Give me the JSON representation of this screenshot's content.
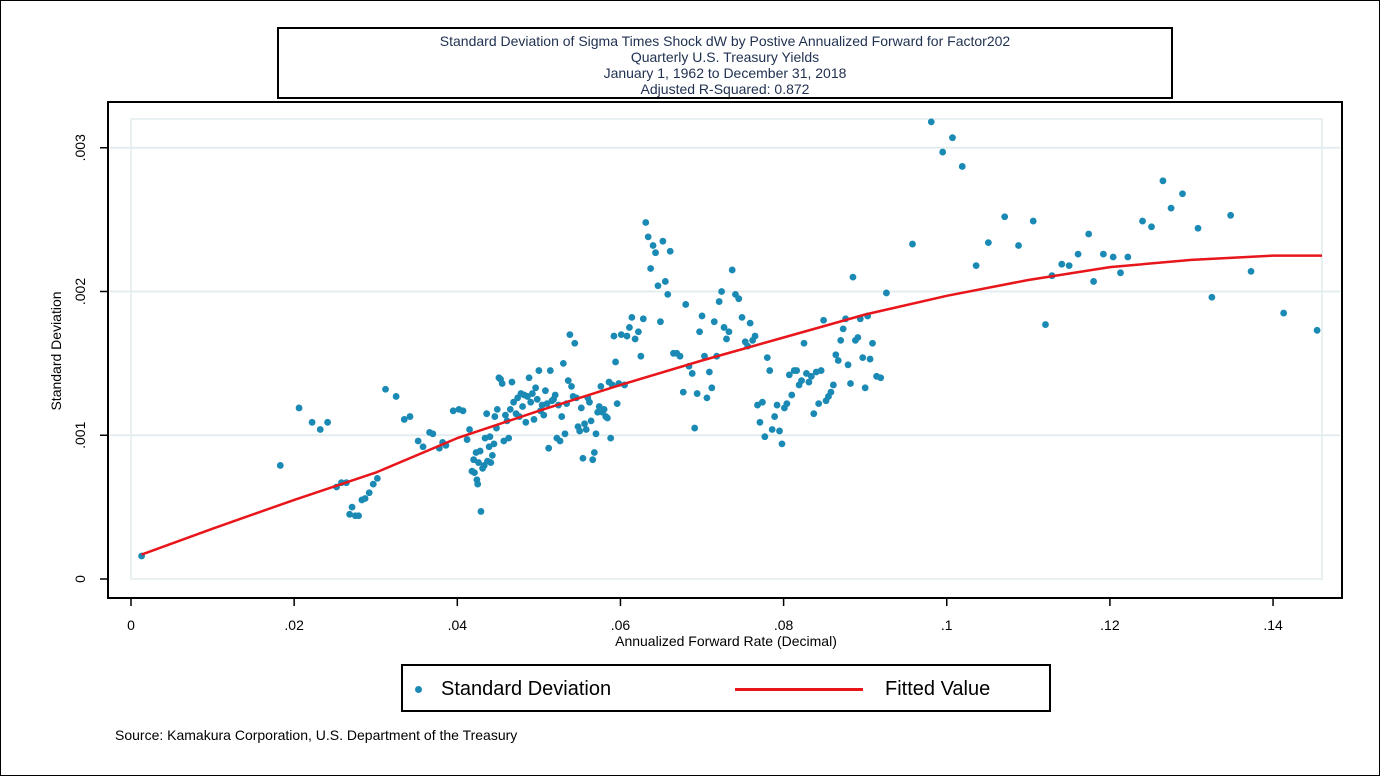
{
  "chart_data": {
    "type": "scatter",
    "title": [
      "Standard Deviation of Sigma Times Shock dW by Postive Annualized Forward for Factor202",
      "Quarterly U.S. Treasury Yields",
      "January 1, 1962 to December 31, 2018",
      "Adjusted R-Squared: 0.872"
    ],
    "xlabel": "Annualized Forward Rate (Decimal)",
    "ylabel": "Standard Deviation",
    "xlim": [
      0,
      0.146
    ],
    "ylim": [
      0,
      0.0032
    ],
    "xticks": [
      {
        "value": 0,
        "label": "0"
      },
      {
        "value": 0.02,
        "label": ".02"
      },
      {
        "value": 0.04,
        "label": ".04"
      },
      {
        "value": 0.06,
        "label": ".06"
      },
      {
        "value": 0.08,
        "label": ".08"
      },
      {
        "value": 0.1,
        "label": ".1"
      },
      {
        "value": 0.12,
        "label": ".12"
      },
      {
        "value": 0.14,
        "label": ".14"
      }
    ],
    "yticks": [
      {
        "value": 0,
        "label": "0"
      },
      {
        "value": 0.001,
        "label": ".001"
      },
      {
        "value": 0.002,
        "label": ".002"
      },
      {
        "value": 0.003,
        "label": ".003"
      }
    ],
    "grid": true,
    "legend_position": "bottom",
    "colors": {
      "scatter": "#1a8ab5",
      "fit": "#e8161b",
      "grid": "#e3ecef",
      "plot_border": "#e8f0f2"
    },
    "series": [
      {
        "name": "Standard Deviation",
        "kind": "scatter",
        "points": [
          [
            0.0013,
            0.00016
          ],
          [
            0.0183,
            0.00079
          ],
          [
            0.0206,
            0.00119
          ],
          [
            0.0222,
            0.00109
          ],
          [
            0.0232,
            0.00104
          ],
          [
            0.0241,
            0.00109
          ],
          [
            0.0252,
            0.00064
          ],
          [
            0.0258,
            0.00067
          ],
          [
            0.0264,
            0.00067
          ],
          [
            0.0268,
            0.00045
          ],
          [
            0.0271,
            0.0005
          ],
          [
            0.0275,
            0.00044
          ],
          [
            0.0279,
            0.00044
          ],
          [
            0.0283,
            0.00055
          ],
          [
            0.0287,
            0.00056
          ],
          [
            0.0292,
            0.0006
          ],
          [
            0.0297,
            0.00066
          ],
          [
            0.0302,
            0.0007
          ],
          [
            0.0312,
            0.00132
          ],
          [
            0.0325,
            0.00127
          ],
          [
            0.0335,
            0.00111
          ],
          [
            0.0342,
            0.00113
          ],
          [
            0.0352,
            0.00096
          ],
          [
            0.0358,
            0.00092
          ],
          [
            0.0366,
            0.00102
          ],
          [
            0.037,
            0.00101
          ],
          [
            0.0378,
            0.00091
          ],
          [
            0.0382,
            0.00095
          ],
          [
            0.0386,
            0.00093
          ],
          [
            0.0395,
            0.00117
          ],
          [
            0.0402,
            0.00118
          ],
          [
            0.0407,
            0.00117
          ],
          [
            0.0412,
            0.00097
          ],
          [
            0.0415,
            0.00104
          ],
          [
            0.0418,
            0.00075
          ],
          [
            0.042,
            0.00083
          ],
          [
            0.0421,
            0.00074
          ],
          [
            0.0423,
            0.00088
          ],
          [
            0.0424,
            0.00069
          ],
          [
            0.0425,
            0.00066
          ],
          [
            0.0426,
            0.00081
          ],
          [
            0.0428,
            0.00089
          ],
          [
            0.0429,
            0.00047
          ],
          [
            0.0431,
            0.00077
          ],
          [
            0.0433,
            0.00079
          ],
          [
            0.0434,
            0.00098
          ],
          [
            0.0436,
            0.00115
          ],
          [
            0.0437,
            0.00082
          ],
          [
            0.0439,
            0.00092
          ],
          [
            0.044,
            0.00099
          ],
          [
            0.0441,
            0.00081
          ],
          [
            0.0443,
            0.00086
          ],
          [
            0.0445,
            0.00094
          ],
          [
            0.0446,
            0.00113
          ],
          [
            0.0448,
            0.00105
          ],
          [
            0.0449,
            0.00118
          ],
          [
            0.0451,
            0.0014
          ],
          [
            0.0453,
            0.00139
          ],
          [
            0.0455,
            0.00136
          ],
          [
            0.0457,
            0.00096
          ],
          [
            0.0459,
            0.00114
          ],
          [
            0.0461,
            0.0011
          ],
          [
            0.0463,
            0.00098
          ],
          [
            0.0465,
            0.00118
          ],
          [
            0.0467,
            0.00137
          ],
          [
            0.0469,
            0.00123
          ],
          [
            0.0472,
            0.00115
          ],
          [
            0.0474,
            0.00126
          ],
          [
            0.0476,
            0.00113
          ],
          [
            0.0478,
            0.00129
          ],
          [
            0.048,
            0.0012
          ],
          [
            0.0482,
            0.00128
          ],
          [
            0.0484,
            0.00109
          ],
          [
            0.0486,
            0.00127
          ],
          [
            0.0488,
            0.0014
          ],
          [
            0.049,
            0.00123
          ],
          [
            0.0492,
            0.00129
          ],
          [
            0.0494,
            0.00111
          ],
          [
            0.0496,
            0.00133
          ],
          [
            0.0498,
            0.00125
          ],
          [
            0.05,
            0.00145
          ],
          [
            0.0502,
            0.00117
          ],
          [
            0.0504,
            0.00121
          ],
          [
            0.0506,
            0.00114
          ],
          [
            0.0508,
            0.00131
          ],
          [
            0.051,
            0.00122
          ],
          [
            0.0512,
            0.00091
          ],
          [
            0.0514,
            0.00145
          ],
          [
            0.0516,
            0.00124
          ],
          [
            0.0518,
            0.00125
          ],
          [
            0.052,
            0.00128
          ],
          [
            0.0522,
            0.00098
          ],
          [
            0.0524,
            0.00121
          ],
          [
            0.0526,
            0.00096
          ],
          [
            0.0528,
            0.00113
          ],
          [
            0.053,
            0.0015
          ],
          [
            0.0532,
            0.00101
          ],
          [
            0.0534,
            0.00122
          ],
          [
            0.0536,
            0.00138
          ],
          [
            0.0538,
            0.0017
          ],
          [
            0.054,
            0.00134
          ],
          [
            0.0542,
            0.00127
          ],
          [
            0.0544,
            0.00164
          ],
          [
            0.0546,
            0.00126
          ],
          [
            0.0548,
            0.00106
          ],
          [
            0.055,
            0.00103
          ],
          [
            0.0552,
            0.00119
          ],
          [
            0.0554,
            0.00084
          ],
          [
            0.0556,
            0.00108
          ],
          [
            0.0558,
            0.00104
          ],
          [
            0.056,
            0.00126
          ],
          [
            0.0562,
            0.00123
          ],
          [
            0.0564,
            0.0011
          ],
          [
            0.0566,
            0.00083
          ],
          [
            0.0568,
            0.00088
          ],
          [
            0.057,
            0.00101
          ],
          [
            0.0572,
            0.00116
          ],
          [
            0.0574,
            0.0012
          ],
          [
            0.0576,
            0.00134
          ],
          [
            0.0578,
            0.00116
          ],
          [
            0.058,
            0.00118
          ],
          [
            0.0582,
            0.00113
          ],
          [
            0.0584,
            0.00112
          ],
          [
            0.0586,
            0.00137
          ],
          [
            0.0588,
            0.00098
          ],
          [
            0.059,
            0.00135
          ],
          [
            0.0592,
            0.00169
          ],
          [
            0.0594,
            0.00151
          ],
          [
            0.0596,
            0.00122
          ],
          [
            0.0598,
            0.00136
          ],
          [
            0.0601,
            0.0017
          ],
          [
            0.0605,
            0.00135
          ],
          [
            0.0608,
            0.00169
          ],
          [
            0.0611,
            0.00175
          ],
          [
            0.0614,
            0.00182
          ],
          [
            0.0618,
            0.00167
          ],
          [
            0.0622,
            0.00172
          ],
          [
            0.0625,
            0.00155
          ],
          [
            0.0628,
            0.00181
          ],
          [
            0.0631,
            0.00248
          ],
          [
            0.0634,
            0.00238
          ],
          [
            0.0637,
            0.00216
          ],
          [
            0.064,
            0.00232
          ],
          [
            0.0643,
            0.00227
          ],
          [
            0.0646,
            0.00204
          ],
          [
            0.0649,
            0.00179
          ],
          [
            0.0652,
            0.00235
          ],
          [
            0.0655,
            0.00207
          ],
          [
            0.0658,
            0.00198
          ],
          [
            0.0661,
            0.00228
          ],
          [
            0.0665,
            0.00157
          ],
          [
            0.0669,
            0.00157
          ],
          [
            0.0673,
            0.00155
          ],
          [
            0.0677,
            0.0013
          ],
          [
            0.068,
            0.00191
          ],
          [
            0.0684,
            0.00148
          ],
          [
            0.0688,
            0.00143
          ],
          [
            0.0691,
            0.00105
          ],
          [
            0.0694,
            0.00129
          ],
          [
            0.0697,
            0.00172
          ],
          [
            0.07,
            0.00183
          ],
          [
            0.0703,
            0.00155
          ],
          [
            0.0706,
            0.00126
          ],
          [
            0.0709,
            0.00144
          ],
          [
            0.0712,
            0.00133
          ],
          [
            0.0715,
            0.00179
          ],
          [
            0.0718,
            0.00155
          ],
          [
            0.0721,
            0.00193
          ],
          [
            0.0724,
            0.002
          ],
          [
            0.0727,
            0.00175
          ],
          [
            0.073,
            0.00167
          ],
          [
            0.0733,
            0.00172
          ],
          [
            0.0737,
            0.00215
          ],
          [
            0.0741,
            0.00198
          ],
          [
            0.0745,
            0.00195
          ],
          [
            0.0749,
            0.00182
          ],
          [
            0.0753,
            0.00165
          ],
          [
            0.0756,
            0.00162
          ],
          [
            0.0759,
            0.00178
          ],
          [
            0.0762,
            0.00166
          ],
          [
            0.0765,
            0.00169
          ],
          [
            0.0768,
            0.00121
          ],
          [
            0.0771,
            0.00109
          ],
          [
            0.0774,
            0.00123
          ],
          [
            0.0777,
            0.00099
          ],
          [
            0.078,
            0.00154
          ],
          [
            0.0783,
            0.00145
          ],
          [
            0.0786,
            0.00104
          ],
          [
            0.0789,
            0.00113
          ],
          [
            0.0792,
            0.00121
          ],
          [
            0.0795,
            0.00103
          ],
          [
            0.0798,
            0.00094
          ],
          [
            0.0801,
            0.00119
          ],
          [
            0.0804,
            0.00122
          ],
          [
            0.0807,
            0.00142
          ],
          [
            0.081,
            0.00128
          ],
          [
            0.0813,
            0.00145
          ],
          [
            0.0816,
            0.00145
          ],
          [
            0.0819,
            0.00135
          ],
          [
            0.0822,
            0.00138
          ],
          [
            0.0825,
            0.00164
          ],
          [
            0.0828,
            0.00143
          ],
          [
            0.0831,
            0.00137
          ],
          [
            0.0834,
            0.00141
          ],
          [
            0.0837,
            0.00115
          ],
          [
            0.084,
            0.00144
          ],
          [
            0.0843,
            0.00122
          ],
          [
            0.0846,
            0.00145
          ],
          [
            0.0849,
            0.0018
          ],
          [
            0.0852,
            0.00124
          ],
          [
            0.0855,
            0.00127
          ],
          [
            0.0858,
            0.0013
          ],
          [
            0.0861,
            0.00135
          ],
          [
            0.0864,
            0.00156
          ],
          [
            0.0867,
            0.00152
          ],
          [
            0.087,
            0.00166
          ],
          [
            0.0873,
            0.00174
          ],
          [
            0.0876,
            0.00181
          ],
          [
            0.0879,
            0.00149
          ],
          [
            0.0882,
            0.00136
          ],
          [
            0.0885,
            0.0021
          ],
          [
            0.0888,
            0.00166
          ],
          [
            0.0891,
            0.00168
          ],
          [
            0.0894,
            0.00181
          ],
          [
            0.0897,
            0.00154
          ],
          [
            0.09,
            0.00133
          ],
          [
            0.0903,
            0.00183
          ],
          [
            0.0906,
            0.00153
          ],
          [
            0.0909,
            0.00164
          ],
          [
            0.0914,
            0.00141
          ],
          [
            0.0919,
            0.0014
          ],
          [
            0.0926,
            0.00199
          ],
          [
            0.0958,
            0.00233
          ],
          [
            0.0981,
            0.00318
          ],
          [
            0.0995,
            0.00297
          ],
          [
            0.1007,
            0.00307
          ],
          [
            0.1019,
            0.00287
          ],
          [
            0.1036,
            0.00218
          ],
          [
            0.1051,
            0.00234
          ],
          [
            0.1071,
            0.00252
          ],
          [
            0.1088,
            0.00232
          ],
          [
            0.1106,
            0.00249
          ],
          [
            0.1121,
            0.00177
          ],
          [
            0.1129,
            0.00211
          ],
          [
            0.1141,
            0.00219
          ],
          [
            0.115,
            0.00218
          ],
          [
            0.1161,
            0.00226
          ],
          [
            0.1174,
            0.0024
          ],
          [
            0.118,
            0.00207
          ],
          [
            0.1192,
            0.00226
          ],
          [
            0.1204,
            0.00224
          ],
          [
            0.1213,
            0.00213
          ],
          [
            0.1222,
            0.00224
          ],
          [
            0.124,
            0.00249
          ],
          [
            0.1251,
            0.00245
          ],
          [
            0.1265,
            0.00277
          ],
          [
            0.1275,
            0.00258
          ],
          [
            0.1289,
            0.00268
          ],
          [
            0.1308,
            0.00244
          ],
          [
            0.1325,
            0.00196
          ],
          [
            0.1348,
            0.00253
          ],
          [
            0.1373,
            0.00214
          ],
          [
            0.1413,
            0.00185
          ],
          [
            0.1454,
            0.00173
          ]
        ]
      },
      {
        "name": "Fitted Value",
        "kind": "line",
        "points": [
          [
            0.0013,
            0.00017
          ],
          [
            0.01,
            0.00035
          ],
          [
            0.02,
            0.00055
          ],
          [
            0.03,
            0.00074
          ],
          [
            0.04,
            0.00098
          ],
          [
            0.05,
            0.00117
          ],
          [
            0.06,
            0.00135
          ],
          [
            0.07,
            0.00152
          ],
          [
            0.08,
            0.00168
          ],
          [
            0.09,
            0.00184
          ],
          [
            0.1,
            0.00197
          ],
          [
            0.11,
            0.00208
          ],
          [
            0.12,
            0.00217
          ],
          [
            0.13,
            0.00222
          ],
          [
            0.14,
            0.00225
          ],
          [
            0.146,
            0.00225
          ]
        ]
      }
    ]
  },
  "legend": {
    "scatter_label": "Standard Deviation",
    "line_label": "Fitted Value"
  },
  "source_note": "Source: Kamakura Corporation, U.S. Department of the Treasury"
}
